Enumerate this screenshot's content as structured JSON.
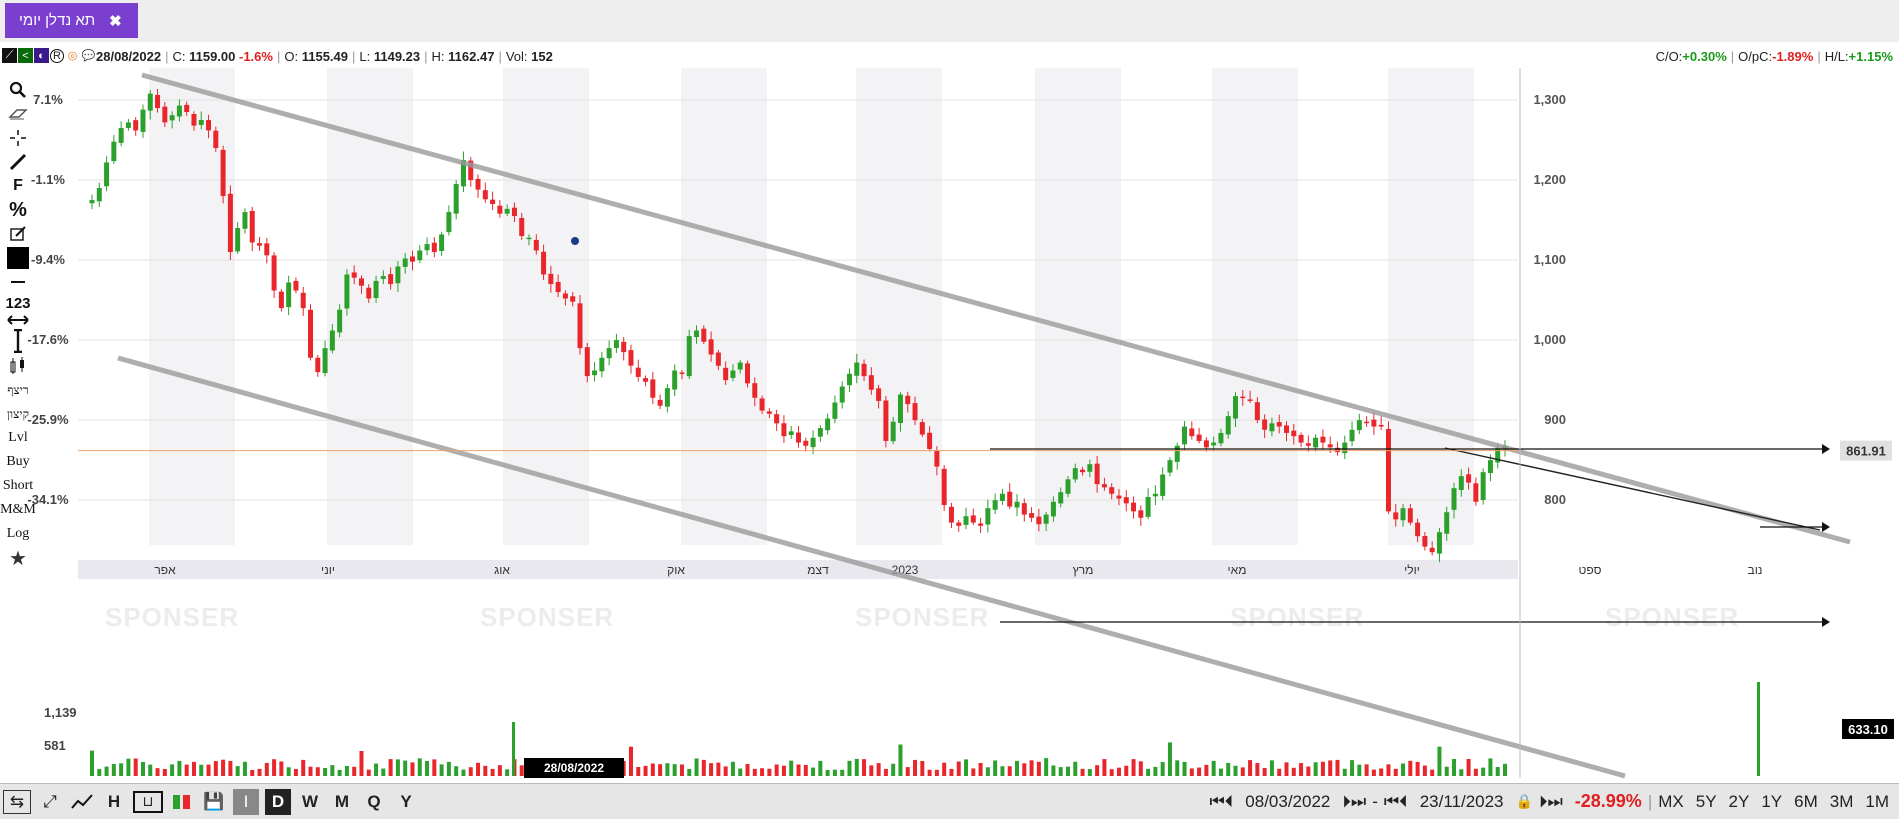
{
  "tab": {
    "title": "תא נדלן יומי",
    "close_glyph": "✖"
  },
  "info": {
    "date": "28/08/2022",
    "close_label": "C:",
    "close": "1159.00",
    "change": "-1.6%",
    "open_label": "O:",
    "open": "1155.49",
    "low_label": "L:",
    "low": "1149.23",
    "high_label": "H:",
    "high": "1162.47",
    "vol_label": "Vol:",
    "vol": "152"
  },
  "ratios": {
    "co_label": "C/O:",
    "co": "+0.30%",
    "opc_label": "O/pC:",
    "opc": "-1.89%",
    "hl_label": "H/L:",
    "hl": "+1.15%"
  },
  "sidebar": {
    "items": [
      "ריצף",
      "קיצון",
      "Lvl",
      "Buy",
      "Short",
      "M&M",
      "Log"
    ],
    "numeric_label": "123",
    "font_label": "F",
    "percent_label": "%"
  },
  "chart_data": {
    "type": "candlestick",
    "y_left_ticks": [
      "7.1%",
      "-1.1%",
      "-9.4%",
      "-17.6%",
      "-25.9%",
      "-34.1%"
    ],
    "y_right_ticks": [
      "1,300",
      "1,200",
      "1,100",
      "1,000",
      "900",
      "800"
    ],
    "y_right_values": [
      1300,
      1200,
      1100,
      1000,
      900,
      800
    ],
    "ylim": [
      700,
      1340
    ],
    "x_labels": [
      "אפר",
      "יוני",
      "אוג",
      "אוק",
      "דצמ",
      "2023",
      "מרץ",
      "מאי",
      "יולי",
      "ספט",
      "נוב"
    ],
    "date_range": [
      "08/03/2022",
      "23/11/2023"
    ],
    "last_price": "861.91",
    "hline_value": 861.91,
    "volume_ticks": [
      "1,139",
      "581"
    ],
    "last_volume": "633.10",
    "cursor_date": "28/08/2022",
    "watermark": "SPONSER",
    "closes": [
      1175,
      1190,
      1222,
      1248,
      1265,
      1272,
      1262,
      1288,
      1308,
      1290,
      1272,
      1281,
      1293,
      1285,
      1268,
      1275,
      1262,
      1240,
      1180,
      1110,
      1140,
      1160,
      1122,
      1118,
      1106,
      1062,
      1040,
      1072,
      1062,
      1040,
      978,
      960,
      990,
      1012,
      1038,
      1082,
      1078,
      1068,
      1052,
      1074,
      1080,
      1070,
      1092,
      1102,
      1098,
      1112,
      1120,
      1110,
      1132,
      1160,
      1195,
      1225,
      1200,
      1188,
      1176,
      1170,
      1158,
      1164,
      1155,
      1130,
      1128,
      1112,
      1082,
      1070,
      1060,
      1052,
      1048,
      990,
      955,
      962,
      978,
      990,
      1000,
      985,
      968,
      954,
      948,
      928,
      918,
      940,
      962,
      958,
      1005,
      1012,
      998,
      982,
      968,
      950,
      962,
      972,
      946,
      928,
      912,
      908,
      896,
      880,
      886,
      872,
      868,
      878,
      890,
      902,
      922,
      942,
      958,
      972,
      955,
      938,
      924,
      874,
      898,
      932,
      920,
      900,
      882,
      864,
      842,
      794,
      772,
      768,
      780,
      772,
      768,
      790,
      800,
      808,
      792,
      798,
      782,
      778,
      770,
      782,
      798,
      810,
      826,
      840,
      835,
      845,
      820,
      816,
      808,
      802,
      796,
      786,
      778,
      804,
      808,
      832,
      850,
      868,
      892,
      880,
      874,
      866,
      872,
      884,
      905,
      930,
      928,
      925,
      900,
      888,
      896,
      892,
      884,
      880,
      872,
      868,
      878,
      872,
      866,
      860,
      872,
      888,
      900,
      898,
      892,
      892,
      786,
      776,
      790,
      772,
      755,
      742,
      735,
      760,
      785,
      815,
      830,
      822,
      798,
      835,
      850,
      865,
      868
    ]
  },
  "bottom": {
    "periods": [
      "I",
      "D",
      "W",
      "M",
      "Q",
      "Y"
    ],
    "start_date": "08/03/2022",
    "end_date": "23/11/2023",
    "range_change": "-28.99%",
    "ranges": [
      "MX",
      "5Y",
      "2Y",
      "1Y",
      "6M",
      "3M",
      "1M"
    ],
    "dash": "-"
  },
  "colors": {
    "up": "#2ca02c",
    "down": "#e8262b",
    "accent": "#7b3fd0",
    "hline": "#f0a060",
    "trend": "#9a9a9a"
  }
}
